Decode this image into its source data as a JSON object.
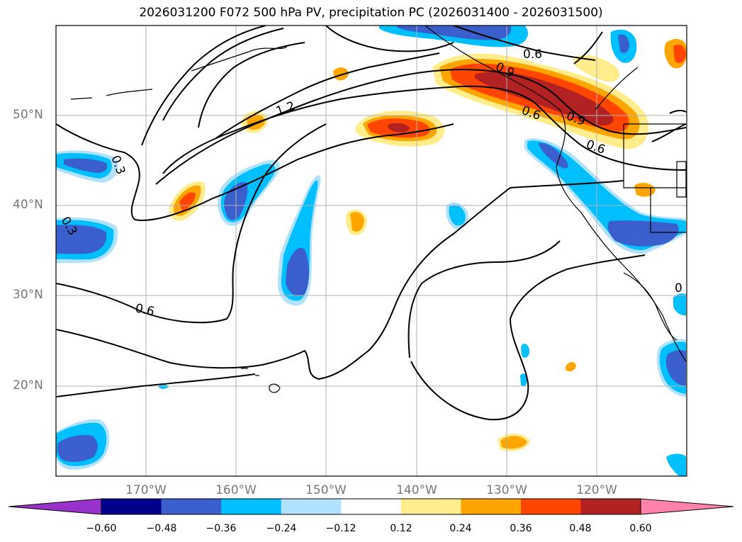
{
  "title": "2026031200 F072 500 hPa PV, precipitation PC (2026031400 - 2026031500)",
  "map": {
    "projection": "equirectangular",
    "lon_range": [
      -180,
      -110
    ],
    "lat_range": [
      10,
      60
    ],
    "gridlines": true,
    "lat_ticks": [
      "50°N",
      "40°N",
      "30°N",
      "20°N"
    ],
    "lon_ticks": [
      "170°W",
      "160°W",
      "150°W",
      "140°W",
      "130°W",
      "120°W"
    ],
    "contour_labels": [
      "0.6",
      "0.9",
      "1.2",
      "0.3",
      "0.3",
      "0.6",
      "0.9",
      "0.6",
      "0.6",
      "0"
    ]
  },
  "colorbar": {
    "ticks": [
      "−0.60",
      "−0.48",
      "−0.36",
      "−0.24",
      "−0.12",
      "0.12",
      "0.24",
      "0.36",
      "0.48",
      "0.60"
    ],
    "colors": [
      "#9932CC",
      "#00008B",
      "#3A5FCD",
      "#00BFFF",
      "#B0E2FF",
      "#FFFFFF",
      "#FFEC8B",
      "#FFA500",
      "#FF4500",
      "#B22222",
      "#FF82AB"
    ],
    "extend": "both"
  }
}
